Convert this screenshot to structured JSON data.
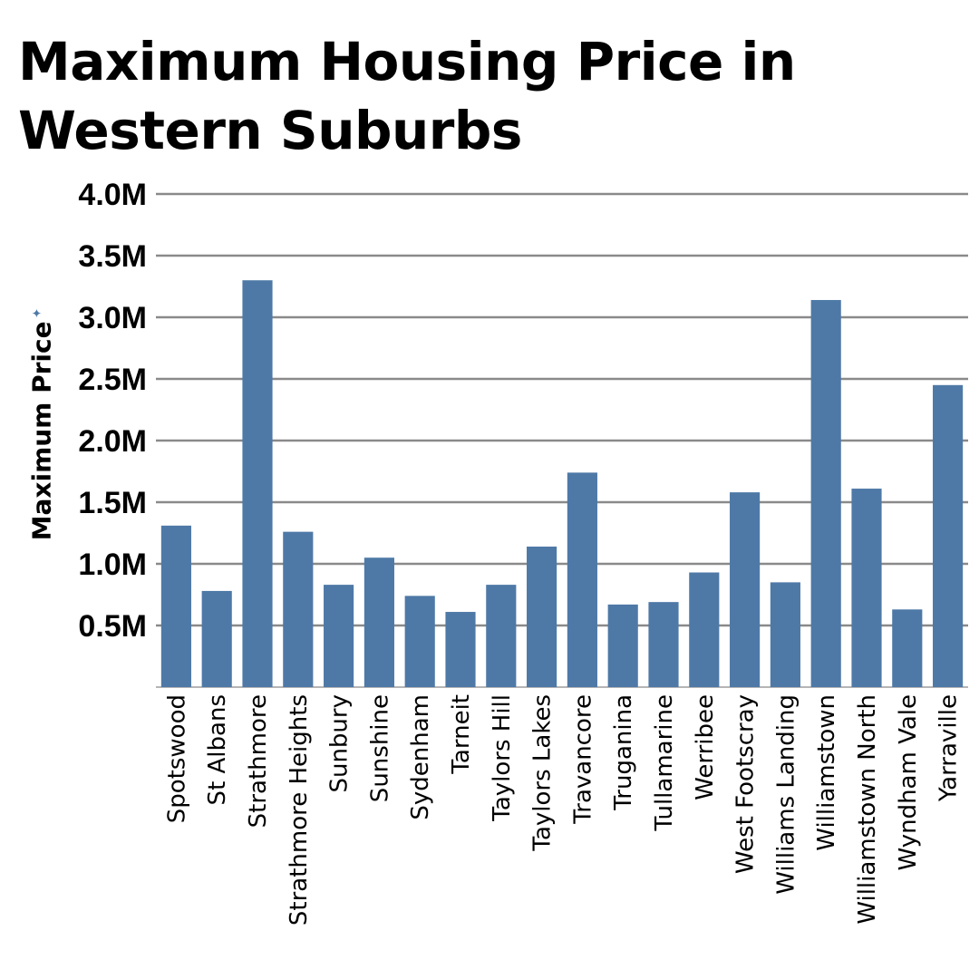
{
  "title": "Maximum Housing Price in Western Suburbs",
  "ylabel": "Maximum Price",
  "chart_data": {
    "type": "bar",
    "title": "Maximum Housing Price in Western Suburbs",
    "xlabel": "",
    "ylabel": "Maximum Price",
    "ylim": [
      0,
      4000000
    ],
    "yticks": [
      500000,
      1000000,
      1500000,
      2000000,
      2500000,
      3000000,
      3500000,
      4000000
    ],
    "ytick_labels": [
      "0.5M",
      "1.0M",
      "1.5M",
      "2.0M",
      "2.5M",
      "3.0M",
      "3.5M",
      "4.0M"
    ],
    "grid": true,
    "color": "#4e79a7",
    "categories": [
      "Spotswood",
      "St Albans",
      "Strathmore",
      "Strathmore Heights",
      "Sunbury",
      "Sunshine",
      "Sydenham",
      "Tarneit",
      "Taylors Hill",
      "Taylors Lakes",
      "Travancore",
      "Truganina",
      "Tullamarine",
      "Werribee",
      "West Footscray",
      "Williams Landing",
      "Williamstown",
      "Williamstown North",
      "Wyndham Vale",
      "Yarraville"
    ],
    "values": [
      1310000,
      780000,
      3300000,
      1260000,
      830000,
      1050000,
      740000,
      610000,
      830000,
      1140000,
      1740000,
      670000,
      690000,
      930000,
      1580000,
      850000,
      3140000,
      1610000,
      630000,
      2450000
    ]
  }
}
